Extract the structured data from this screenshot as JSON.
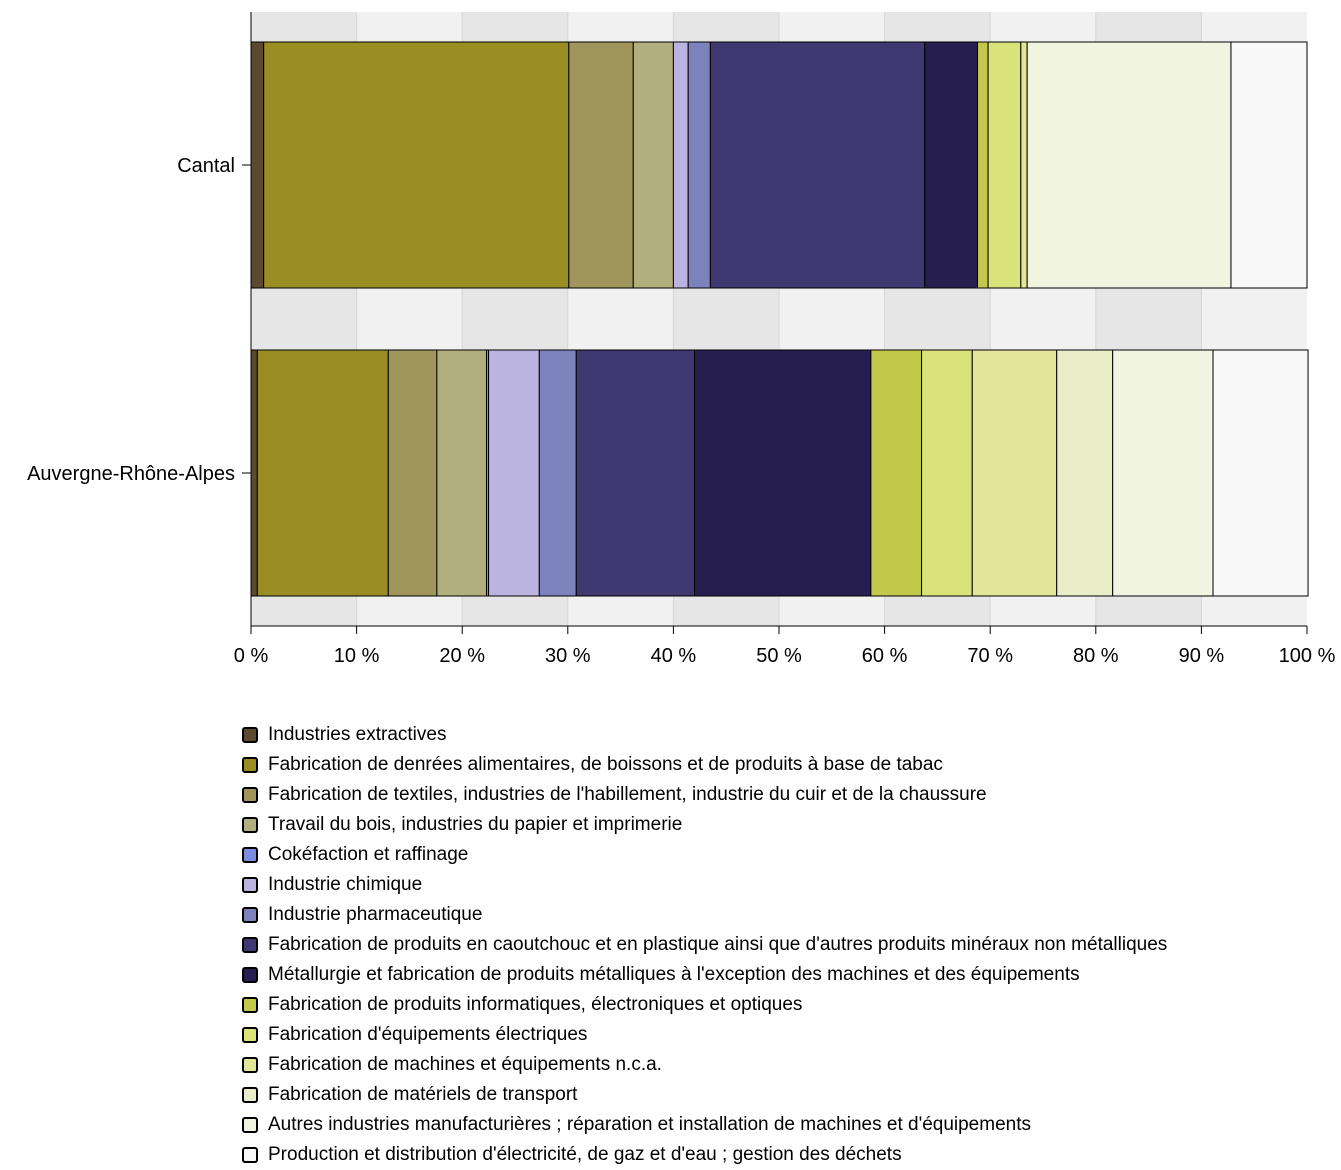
{
  "chart_data": {
    "type": "bar",
    "orientation": "horizontal",
    "stacked": "percent",
    "categories": [
      "Cantal",
      "Auvergne-Rhône-Alpes"
    ],
    "x_ticks": [
      "0 %",
      "10 %",
      "20 %",
      "30 %",
      "40 %",
      "50 %",
      "60 %",
      "70 %",
      "80 %",
      "90 %",
      "100 %"
    ],
    "xlim": [
      0,
      100
    ],
    "grid": "alternating vertical bands",
    "legend_position": "bottom",
    "series": [
      {
        "name": "Industries extractives",
        "color": "#5c4a30",
        "values": [
          1.2,
          0.6
        ]
      },
      {
        "name": "Fabrication de denrées alimentaires, de boissons et de produits à base de tabac",
        "color": "#998d24",
        "values": [
          28.9,
          12.4
        ]
      },
      {
        "name": "Fabrication de textiles, industries de l'habillement, industrie du cuir et de la chaussure",
        "color": "#a0955a",
        "values": [
          6.1,
          4.6
        ]
      },
      {
        "name": "Travail du bois, industries du papier et imprimerie",
        "color": "#b2af7e",
        "values": [
          3.8,
          4.7
        ]
      },
      {
        "name": "Cokéfaction et raffinage",
        "color": "#7e8ce0",
        "values": [
          0.0,
          0.2
        ]
      },
      {
        "name": "Industrie chimique",
        "color": "#bcb4e0",
        "values": [
          1.4,
          4.8
        ]
      },
      {
        "name": "Industrie pharmaceutique",
        "color": "#7c83bc",
        "values": [
          2.1,
          3.5
        ]
      },
      {
        "name": "Fabrication de produits en caoutchouc et en plastique ainsi que d'autres produits minéraux non métalliques",
        "color": "#403870",
        "values": [
          20.3,
          11.2
        ]
      },
      {
        "name": "Métallurgie et fabrication de produits métalliques à l'exception des machines et des équipements",
        "color": "#261e4e",
        "values": [
          5.0,
          16.7
        ]
      },
      {
        "name": "Fabrication de produits informatiques, électroniques et optiques",
        "color": "#c2c84a",
        "values": [
          1.0,
          4.8
        ]
      },
      {
        "name": "Fabrication d'équipements électriques",
        "color": "#dae27a",
        "values": [
          3.1,
          4.8
        ]
      },
      {
        "name": "Fabrication de machines et équipements n.c.a.",
        "color": "#e2e698",
        "values": [
          0.6,
          8.0
        ]
      },
      {
        "name": "Fabrication de matériels de transport",
        "color": "#eaeec8",
        "values": [
          0.0,
          5.3
        ]
      },
      {
        "name": "Autres industries manufacturières ; réparation et installation de machines et d'équipements",
        "color": "#f2f4e2",
        "values": [
          19.3,
          9.5
        ]
      },
      {
        "name": "Production et distribution d'électricité, de gaz et d'eau ; gestion des déchets",
        "color": "#f8f8f8",
        "values": [
          7.2,
          9.0
        ]
      }
    ]
  }
}
